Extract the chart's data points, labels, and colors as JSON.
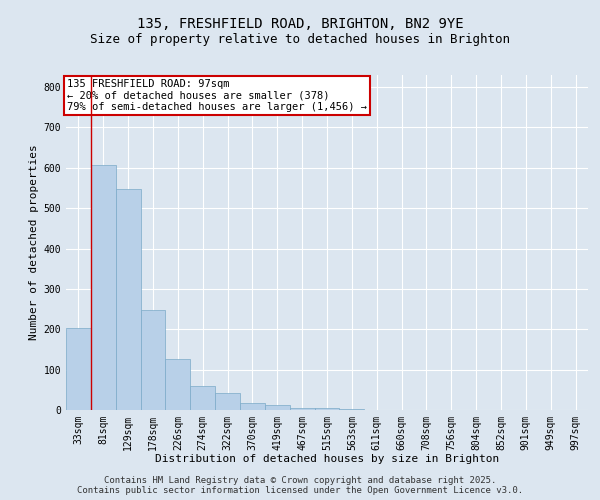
{
  "title_line1": "135, FRESHFIELD ROAD, BRIGHTON, BN2 9YE",
  "title_line2": "Size of property relative to detached houses in Brighton",
  "xlabel": "Distribution of detached houses by size in Brighton",
  "ylabel": "Number of detached properties",
  "bar_color": "#b8d0e8",
  "bar_edge_color": "#7aaac8",
  "background_color": "#dce6f0",
  "grid_color": "#ffffff",
  "categories": [
    "33sqm",
    "81sqm",
    "129sqm",
    "178sqm",
    "226sqm",
    "274sqm",
    "322sqm",
    "370sqm",
    "419sqm",
    "467sqm",
    "515sqm",
    "563sqm",
    "611sqm",
    "660sqm",
    "708sqm",
    "756sqm",
    "804sqm",
    "852sqm",
    "901sqm",
    "949sqm",
    "997sqm"
  ],
  "values": [
    204,
    607,
    547,
    248,
    127,
    60,
    43,
    18,
    12,
    5,
    4,
    2,
    1,
    0,
    0,
    0,
    0,
    0,
    0,
    1,
    0
  ],
  "ylim": [
    0,
    830
  ],
  "yticks": [
    0,
    100,
    200,
    300,
    400,
    500,
    600,
    700,
    800
  ],
  "annotation_text": "135 FRESHFIELD ROAD: 97sqm\n← 20% of detached houses are smaller (378)\n79% of semi-detached houses are larger (1,456) →",
  "annotation_box_facecolor": "#ffffff",
  "annotation_box_edgecolor": "#cc0000",
  "red_line_bar_index": 1,
  "footnote": "Contains HM Land Registry data © Crown copyright and database right 2025.\nContains public sector information licensed under the Open Government Licence v3.0.",
  "title_fontsize": 10,
  "subtitle_fontsize": 9,
  "axis_label_fontsize": 8,
  "tick_fontsize": 7,
  "annotation_fontsize": 7.5,
  "footnote_fontsize": 6.5
}
